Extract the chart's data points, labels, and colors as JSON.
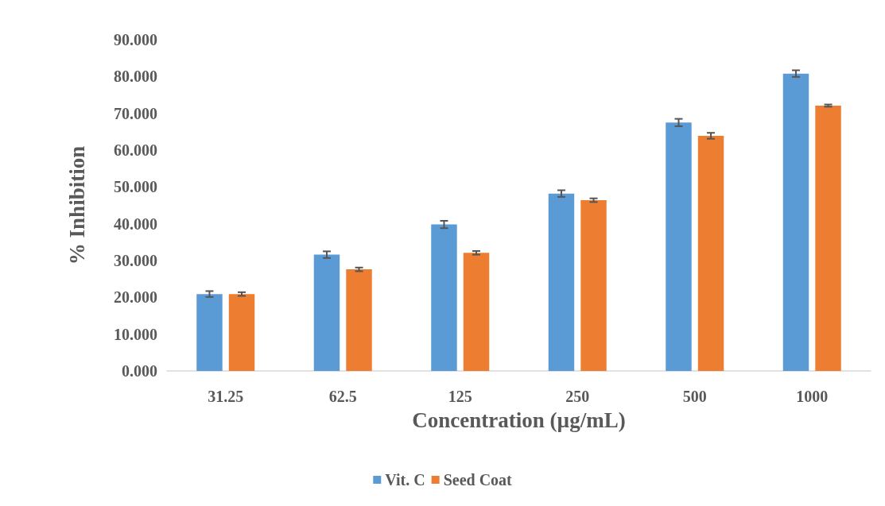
{
  "chart_data": {
    "type": "bar",
    "xlabel": "Concentration (µg/mL)",
    "ylabel": "% Inhibition",
    "categories": [
      "31.25",
      "62.5",
      "125",
      "250",
      "500",
      "1000"
    ],
    "series": [
      {
        "name": "Vit. C",
        "color": "#5b9bd5",
        "values": [
          20.9,
          31.6,
          39.8,
          48.2,
          67.5,
          80.8
        ],
        "errors": [
          0.8,
          0.9,
          1.0,
          0.9,
          1.0,
          0.9
        ]
      },
      {
        "name": "Seed Coat",
        "color": "#ed7d31",
        "values": [
          20.9,
          27.6,
          32.1,
          46.4,
          63.9,
          72.1
        ],
        "errors": [
          0.5,
          0.5,
          0.5,
          0.5,
          0.8,
          0.3
        ]
      }
    ],
    "ylim": [
      0,
      90
    ],
    "yticks": [
      {
        "value": 0,
        "label": "0.000"
      },
      {
        "value": 10,
        "label": "10.000"
      },
      {
        "value": 20,
        "label": "20.000"
      },
      {
        "value": 30,
        "label": "30.000"
      },
      {
        "value": 40,
        "label": "40.000"
      },
      {
        "value": 50,
        "label": "50.000"
      },
      {
        "value": 60,
        "label": "60.000"
      },
      {
        "value": 70,
        "label": "70.000"
      },
      {
        "value": 80,
        "label": "80.000"
      },
      {
        "value": 90,
        "label": "90.000"
      }
    ],
    "grid": false,
    "legend": "bottom"
  }
}
